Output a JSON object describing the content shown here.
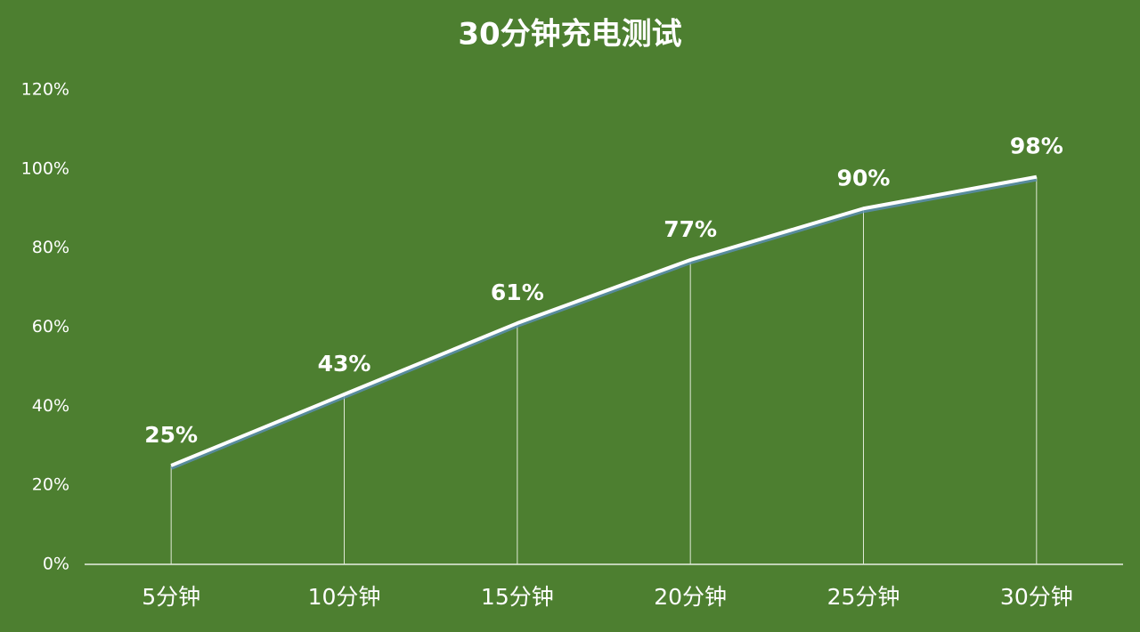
{
  "chart_data": {
    "type": "line",
    "title": "30分钟充电测试",
    "categories": [
      "5分钟",
      "10分钟",
      "15分钟",
      "20分钟",
      "25分钟",
      "30分钟"
    ],
    "values": [
      25,
      43,
      61,
      77,
      90,
      98
    ],
    "value_labels": [
      "25%",
      "43%",
      "61%",
      "77%",
      "90%",
      "98%"
    ],
    "color": "#ffffff",
    "ylim": [
      0,
      120
    ],
    "yticks": [
      {
        "value": 0,
        "label": "0%"
      },
      {
        "value": 20,
        "label": "20%"
      },
      {
        "value": 40,
        "label": "40%"
      },
      {
        "value": 60,
        "label": "60%"
      },
      {
        "value": 80,
        "label": "80%"
      },
      {
        "value": 100,
        "label": "100%"
      },
      {
        "value": 120,
        "label": "120%"
      }
    ],
    "grid": false
  }
}
